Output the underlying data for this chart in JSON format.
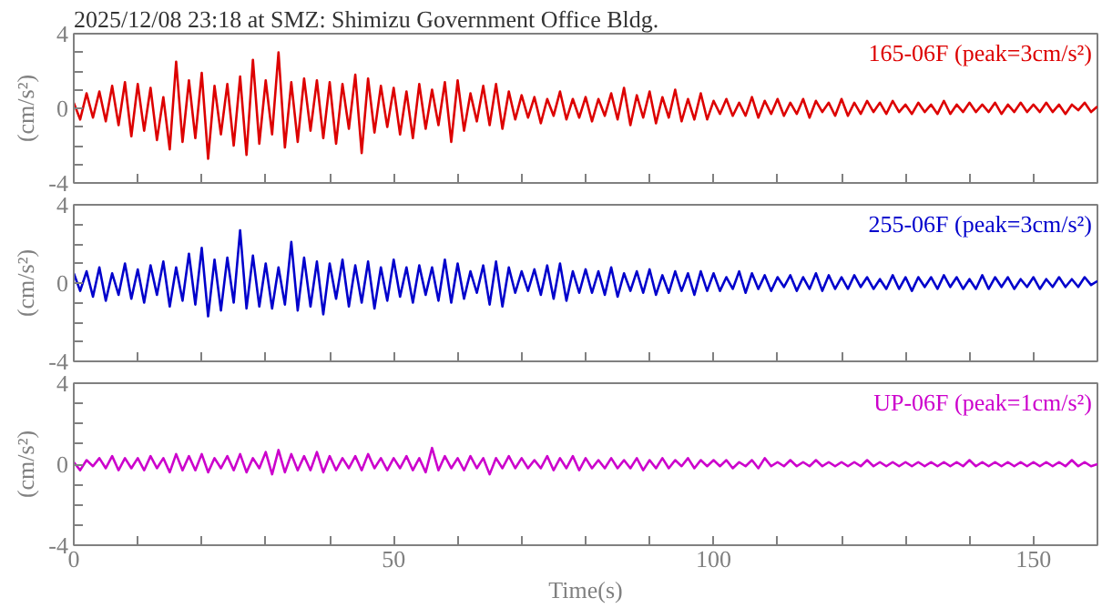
{
  "chart_data": [
    {
      "type": "line",
      "title": "2025/12/08 23:18 at SMZ: Shimizu Government Office Bldg.",
      "ylabel": "(cm/s²)",
      "xlim": [
        0,
        160
      ],
      "ylim": [
        -4,
        4
      ],
      "tick_labels": "y",
      "grid": false,
      "xticks": [
        {
          "value": 0,
          "label": null
        },
        {
          "value": 10,
          "label": null
        },
        {
          "value": 20,
          "label": null
        },
        {
          "value": 30,
          "label": null
        },
        {
          "value": 40,
          "label": null
        },
        {
          "value": 50,
          "label": null
        },
        {
          "value": 60,
          "label": null
        },
        {
          "value": 70,
          "label": null
        },
        {
          "value": 80,
          "label": null
        },
        {
          "value": 90,
          "label": null
        },
        {
          "value": 100,
          "label": null
        },
        {
          "value": 110,
          "label": null
        },
        {
          "value": 120,
          "label": null
        },
        {
          "value": 130,
          "label": null
        },
        {
          "value": 140,
          "label": null
        },
        {
          "value": 150,
          "label": null
        },
        {
          "value": 160,
          "label": null
        }
      ],
      "yticks": [
        -4,
        {
          "value": -3,
          "label": null
        },
        {
          "value": -2,
          "label": null
        },
        {
          "value": -1,
          "label": null
        },
        0,
        {
          "value": 1,
          "label": null
        },
        {
          "value": 2,
          "label": null
        },
        {
          "value": 3,
          "label": null
        },
        4
      ],
      "x": [
        0,
        1,
        2,
        3,
        4,
        5,
        6,
        7,
        8,
        9,
        10,
        11,
        12,
        13,
        14,
        15,
        16,
        17,
        18,
        19,
        20,
        21,
        22,
        23,
        24,
        25,
        26,
        27,
        28,
        29,
        30,
        31,
        32,
        33,
        34,
        35,
        36,
        37,
        38,
        39,
        40,
        41,
        42,
        43,
        44,
        45,
        46,
        47,
        48,
        49,
        50,
        51,
        52,
        53,
        54,
        55,
        56,
        57,
        58,
        59,
        60,
        61,
        62,
        63,
        64,
        65,
        66,
        67,
        68,
        69,
        70,
        71,
        72,
        73,
        74,
        75,
        76,
        77,
        78,
        79,
        80,
        81,
        82,
        83,
        84,
        85,
        86,
        87,
        88,
        89,
        90,
        91,
        92,
        93,
        94,
        95,
        96,
        97,
        98,
        99,
        100,
        101,
        102,
        103,
        104,
        105,
        106,
        107,
        108,
        109,
        110,
        111,
        112,
        113,
        114,
        115,
        116,
        117,
        118,
        119,
        120,
        121,
        122,
        123,
        124,
        125,
        126,
        127,
        128,
        129,
        130,
        131,
        132,
        133,
        134,
        135,
        136,
        137,
        138,
        139,
        140,
        141,
        142,
        143,
        144,
        145,
        146,
        147,
        148,
        149,
        150,
        151,
        152,
        153,
        154,
        155,
        156,
        157,
        158,
        159,
        160
      ],
      "series": [
        {
          "name": "165-06F (peak=3cm/s²)",
          "color": "#dd0000",
          "values": [
            0.3,
            -0.6,
            0.8,
            -0.5,
            0.9,
            -0.7,
            1.2,
            -0.9,
            1.4,
            -1.5,
            1.3,
            -1.2,
            1.1,
            -1.7,
            0.6,
            -2.2,
            2.5,
            -1.8,
            1.5,
            -1.6,
            1.9,
            -2.7,
            1.2,
            -1.4,
            1.3,
            -2.0,
            1.7,
            -2.5,
            2.6,
            -1.9,
            1.5,
            -1.4,
            3.0,
            -2.1,
            1.4,
            -1.8,
            1.6,
            -1.2,
            1.5,
            -1.6,
            1.4,
            -1.9,
            1.3,
            -1.1,
            1.8,
            -2.4,
            1.6,
            -1.3,
            1.2,
            -1.0,
            1.1,
            -1.4,
            0.9,
            -1.6,
            1.3,
            -1.1,
            1.0,
            -0.9,
            1.4,
            -1.8,
            1.5,
            -1.2,
            0.8,
            -0.7,
            1.2,
            -0.9,
            1.3,
            -1.1,
            0.9,
            -0.6,
            0.7,
            -0.5,
            0.6,
            -0.8,
            0.5,
            -0.4,
            0.9,
            -0.6,
            0.5,
            -0.5,
            0.6,
            -0.7,
            0.5,
            -0.4,
            0.8,
            -0.6,
            1.1,
            -0.9,
            0.7,
            -0.5,
            0.9,
            -0.8,
            0.6,
            -0.5,
            1.0,
            -0.7,
            0.5,
            -0.6,
            0.8,
            -0.6,
            0.4,
            -0.3,
            0.5,
            -0.4,
            0.3,
            -0.4,
            0.6,
            -0.5,
            0.4,
            -0.3,
            0.5,
            -0.4,
            0.3,
            -0.3,
            0.5,
            -0.5,
            0.4,
            -0.2,
            0.3,
            -0.4,
            0.5,
            -0.4,
            0.3,
            -0.3,
            0.4,
            -0.2,
            0.3,
            -0.3,
            0.4,
            -0.2,
            0.2,
            -0.3,
            0.3,
            -0.2,
            0.2,
            -0.3,
            0.4,
            -0.3,
            0.2,
            -0.2,
            0.3,
            -0.2,
            0.2,
            -0.2,
            0.3,
            -0.3,
            0.2,
            -0.2,
            0.3,
            -0.2,
            0.2,
            -0.2,
            0.3,
            -0.2,
            0.2,
            -0.3,
            0.2,
            -0.1,
            0.3,
            -0.2,
            0.1
          ]
        }
      ]
    },
    {
      "type": "line",
      "ylabel": "(cm/s²)",
      "xlim": [
        0,
        160
      ],
      "ylim": [
        -4,
        4
      ],
      "tick_labels": "y",
      "grid": false,
      "xticks": [
        {
          "value": 0,
          "label": null
        },
        {
          "value": 10,
          "label": null
        },
        {
          "value": 20,
          "label": null
        },
        {
          "value": 30,
          "label": null
        },
        {
          "value": 40,
          "label": null
        },
        {
          "value": 50,
          "label": null
        },
        {
          "value": 60,
          "label": null
        },
        {
          "value": 70,
          "label": null
        },
        {
          "value": 80,
          "label": null
        },
        {
          "value": 90,
          "label": null
        },
        {
          "value": 100,
          "label": null
        },
        {
          "value": 110,
          "label": null
        },
        {
          "value": 120,
          "label": null
        },
        {
          "value": 130,
          "label": null
        },
        {
          "value": 140,
          "label": null
        },
        {
          "value": 150,
          "label": null
        },
        {
          "value": 160,
          "label": null
        }
      ],
      "yticks": [
        -4,
        {
          "value": -3,
          "label": null
        },
        {
          "value": -2,
          "label": null
        },
        {
          "value": -1,
          "label": null
        },
        0,
        {
          "value": 1,
          "label": null
        },
        {
          "value": 2,
          "label": null
        },
        {
          "value": 3,
          "label": null
        },
        4
      ],
      "x": [
        0,
        1,
        2,
        3,
        4,
        5,
        6,
        7,
        8,
        9,
        10,
        11,
        12,
        13,
        14,
        15,
        16,
        17,
        18,
        19,
        20,
        21,
        22,
        23,
        24,
        25,
        26,
        27,
        28,
        29,
        30,
        31,
        32,
        33,
        34,
        35,
        36,
        37,
        38,
        39,
        40,
        41,
        42,
        43,
        44,
        45,
        46,
        47,
        48,
        49,
        50,
        51,
        52,
        53,
        54,
        55,
        56,
        57,
        58,
        59,
        60,
        61,
        62,
        63,
        64,
        65,
        66,
        67,
        68,
        69,
        70,
        71,
        72,
        73,
        74,
        75,
        76,
        77,
        78,
        79,
        80,
        81,
        82,
        83,
        84,
        85,
        86,
        87,
        88,
        89,
        90,
        91,
        92,
        93,
        94,
        95,
        96,
        97,
        98,
        99,
        100,
        101,
        102,
        103,
        104,
        105,
        106,
        107,
        108,
        109,
        110,
        111,
        112,
        113,
        114,
        115,
        116,
        117,
        118,
        119,
        120,
        121,
        122,
        123,
        124,
        125,
        126,
        127,
        128,
        129,
        130,
        131,
        132,
        133,
        134,
        135,
        136,
        137,
        138,
        139,
        140,
        141,
        142,
        143,
        144,
        145,
        146,
        147,
        148,
        149,
        150,
        151,
        152,
        153,
        154,
        155,
        156,
        157,
        158,
        159,
        160
      ],
      "series": [
        {
          "name": "255-06F (peak=3cm/s²)",
          "color": "#0000cc",
          "values": [
            0.5,
            -0.4,
            0.6,
            -0.7,
            0.8,
            -0.9,
            0.5,
            -0.6,
            1.0,
            -0.8,
            0.7,
            -1.0,
            0.9,
            -0.6,
            1.1,
            -1.2,
            0.8,
            -0.9,
            1.5,
            -1.1,
            1.8,
            -1.7,
            1.2,
            -1.4,
            1.3,
            -1.0,
            2.7,
            -1.3,
            1.4,
            -1.2,
            1.0,
            -1.3,
            0.8,
            -1.1,
            2.1,
            -1.4,
            1.3,
            -1.2,
            1.1,
            -1.6,
            1.0,
            -0.8,
            1.2,
            -1.2,
            0.9,
            -1.0,
            1.1,
            -1.3,
            0.8,
            -0.9,
            1.2,
            -0.7,
            0.8,
            -1.0,
            0.9,
            -0.6,
            0.8,
            -0.9,
            1.2,
            -1.0,
            1.0,
            -0.8,
            0.6,
            -0.5,
            0.9,
            -1.1,
            1.1,
            -1.2,
            0.8,
            -0.5,
            0.6,
            -0.4,
            0.7,
            -0.6,
            0.9,
            -0.8,
            1.0,
            -0.9,
            0.6,
            -0.5,
            0.7,
            -0.5,
            0.6,
            -0.6,
            0.8,
            -0.7,
            0.5,
            -0.4,
            0.6,
            -0.5,
            0.7,
            -0.6,
            0.4,
            -0.5,
            0.6,
            -0.4,
            0.5,
            -0.6,
            0.6,
            -0.4,
            0.5,
            -0.4,
            0.3,
            -0.3,
            0.6,
            -0.5,
            0.5,
            -0.3,
            0.4,
            -0.4,
            0.3,
            -0.2,
            0.4,
            -0.4,
            0.3,
            -0.3,
            0.5,
            -0.4,
            0.4,
            -0.3,
            0.3,
            -0.3,
            0.4,
            -0.2,
            0.3,
            -0.3,
            0.2,
            -0.3,
            0.4,
            -0.3,
            0.3,
            -0.4,
            0.3,
            -0.2,
            0.3,
            -0.3,
            0.4,
            -0.2,
            0.3,
            -0.3,
            0.2,
            -0.3,
            0.4,
            -0.3,
            0.3,
            -0.2,
            0.3,
            -0.3,
            0.2,
            -0.2,
            0.3,
            -0.3,
            0.2,
            -0.2,
            0.3,
            -0.2,
            0.2,
            -0.2,
            0.3,
            -0.1,
            0.1
          ]
        }
      ]
    },
    {
      "type": "line",
      "ylabel": "(cm/s²)",
      "xlabel": "Time(s)",
      "xlim": [
        0,
        160
      ],
      "ylim": [
        -4,
        4
      ],
      "grid": false,
      "xticks": [
        0,
        {
          "value": 10,
          "label": null
        },
        {
          "value": 20,
          "label": null
        },
        {
          "value": 30,
          "label": null
        },
        {
          "value": 40,
          "label": null
        },
        50,
        {
          "value": 60,
          "label": null
        },
        {
          "value": 70,
          "label": null
        },
        {
          "value": 80,
          "label": null
        },
        {
          "value": 90,
          "label": null
        },
        100,
        {
          "value": 110,
          "label": null
        },
        {
          "value": 120,
          "label": null
        },
        {
          "value": 130,
          "label": null
        },
        {
          "value": 140,
          "label": null
        },
        150,
        {
          "value": 160,
          "label": null
        }
      ],
      "yticks": [
        -4,
        {
          "value": -3,
          "label": null
        },
        {
          "value": -2,
          "label": null
        },
        {
          "value": -1,
          "label": null
        },
        0,
        {
          "value": 1,
          "label": null
        },
        {
          "value": 2,
          "label": null
        },
        {
          "value": 3,
          "label": null
        },
        4
      ],
      "x": [
        0,
        1,
        2,
        3,
        4,
        5,
        6,
        7,
        8,
        9,
        10,
        11,
        12,
        13,
        14,
        15,
        16,
        17,
        18,
        19,
        20,
        21,
        22,
        23,
        24,
        25,
        26,
        27,
        28,
        29,
        30,
        31,
        32,
        33,
        34,
        35,
        36,
        37,
        38,
        39,
        40,
        41,
        42,
        43,
        44,
        45,
        46,
        47,
        48,
        49,
        50,
        51,
        52,
        53,
        54,
        55,
        56,
        57,
        58,
        59,
        60,
        61,
        62,
        63,
        64,
        65,
        66,
        67,
        68,
        69,
        70,
        71,
        72,
        73,
        74,
        75,
        76,
        77,
        78,
        79,
        80,
        81,
        82,
        83,
        84,
        85,
        86,
        87,
        88,
        89,
        90,
        91,
        92,
        93,
        94,
        95,
        96,
        97,
        98,
        99,
        100,
        101,
        102,
        103,
        104,
        105,
        106,
        107,
        108,
        109,
        110,
        111,
        112,
        113,
        114,
        115,
        116,
        117,
        118,
        119,
        120,
        121,
        122,
        123,
        124,
        125,
        126,
        127,
        128,
        129,
        130,
        131,
        132,
        133,
        134,
        135,
        136,
        137,
        138,
        139,
        140,
        141,
        142,
        143,
        144,
        145,
        146,
        147,
        148,
        149,
        150,
        151,
        152,
        153,
        154,
        155,
        156,
        157,
        158,
        159,
        160
      ],
      "series": [
        {
          "name": "UP-06F (peak=1cm/s²)",
          "color": "#cc00cc",
          "values": [
            0.1,
            -0.3,
            0.2,
            -0.1,
            0.3,
            -0.2,
            0.4,
            -0.3,
            0.3,
            -0.2,
            0.3,
            -0.3,
            0.4,
            -0.2,
            0.3,
            -0.4,
            0.5,
            -0.3,
            0.4,
            -0.3,
            0.5,
            -0.4,
            0.3,
            -0.2,
            0.4,
            -0.3,
            0.5,
            -0.4,
            0.3,
            -0.2,
            0.6,
            -0.5,
            0.7,
            -0.4,
            0.5,
            -0.3,
            0.4,
            -0.3,
            0.6,
            -0.4,
            0.4,
            -0.3,
            0.3,
            -0.2,
            0.4,
            -0.3,
            0.5,
            -0.2,
            0.3,
            -0.3,
            0.3,
            -0.2,
            0.4,
            -0.3,
            0.3,
            -0.4,
            0.8,
            -0.3,
            0.4,
            -0.2,
            0.3,
            -0.3,
            0.4,
            -0.2,
            0.3,
            -0.5,
            0.3,
            -0.2,
            0.4,
            -0.2,
            0.3,
            -0.2,
            0.2,
            -0.2,
            0.4,
            -0.3,
            0.3,
            -0.2,
            0.4,
            -0.3,
            0.3,
            -0.2,
            0.2,
            -0.2,
            0.3,
            -0.2,
            0.2,
            -0.2,
            0.3,
            -0.3,
            0.2,
            -0.2,
            0.3,
            -0.2,
            0.2,
            -0.1,
            0.3,
            -0.2,
            0.2,
            -0.1,
            0.2,
            -0.1,
            0.2,
            -0.2,
            0.1,
            -0.1,
            0.2,
            -0.2,
            0.3,
            -0.1,
            0.1,
            -0.1,
            0.2,
            -0.1,
            0.1,
            -0.1,
            0.2,
            -0.1,
            0.1,
            -0.1,
            0.1,
            -0.1,
            0.1,
            -0.1,
            0.2,
            -0.1,
            0.1,
            -0.1,
            0.1,
            -0.1,
            0.1,
            -0.1,
            0.1,
            -0.1,
            0.1,
            -0.1,
            0.1,
            -0.1,
            0.1,
            -0.1,
            0.2,
            -0.1,
            0.1,
            -0.1,
            0.1,
            -0.1,
            0.1,
            -0.1,
            0.1,
            -0.1,
            0.1,
            -0.1,
            0.1,
            -0.1,
            0.1,
            -0.1,
            0.2,
            -0.1,
            0.1,
            -0.1,
            0.0
          ]
        }
      ]
    }
  ]
}
